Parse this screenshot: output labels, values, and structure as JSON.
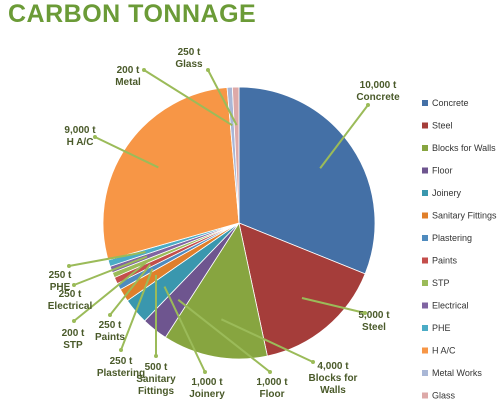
{
  "title": "CARBON TONNAGE",
  "colors": {
    "title": "#6B9B37",
    "label": "#4A5A2A",
    "leader": "#9BBB59"
  },
  "chart_data": {
    "type": "pie",
    "title": "CARBON TONNAGE",
    "slices": [
      {
        "name": "Concrete",
        "value": 10000,
        "label": "10,000 t\nConcrete",
        "color": "#4470A6"
      },
      {
        "name": "Steel",
        "value": 5000,
        "label": "5,000 t\nSteel",
        "color": "#A53D3A"
      },
      {
        "name": "Blocks for Walls",
        "value": 4000,
        "label": "4,000 t\nBlocks for\nWalls",
        "color": "#87A540"
      },
      {
        "name": "Floor",
        "value": 1000,
        "label": "1,000 t\nFloor",
        "color": "#6E558F"
      },
      {
        "name": "Joinery",
        "value": 1000,
        "label": "1,000 t\nJoinery",
        "color": "#3A97AE"
      },
      {
        "name": "Sanitary Fittings",
        "value": 500,
        "label": "500 t\nSanitary\nFittings",
        "color": "#E07F2B"
      },
      {
        "name": "Plastering",
        "value": 250,
        "label": "250 t\nPlastering",
        "color": "#4F8BBE"
      },
      {
        "name": "Paints",
        "value": 250,
        "label": "250 t\nPaints",
        "color": "#C44E4B"
      },
      {
        "name": "STP",
        "value": 200,
        "label": "200 t\nSTP",
        "color": "#9BBB59"
      },
      {
        "name": "Electrical",
        "value": 250,
        "label": "250 t\nElectrical",
        "color": "#8064A2"
      },
      {
        "name": "PHE",
        "value": 250,
        "label": "250 t\nPHE",
        "color": "#4BACC6"
      },
      {
        "name": "H A/C",
        "value": 9000,
        "label": "9,000 t\nH A/C",
        "color": "#F79646"
      },
      {
        "name": "Metal Works",
        "value": 200,
        "label": "200 t\nMetal",
        "color": "#A9B7D6"
      },
      {
        "name": "Glass",
        "value": 250,
        "label": "250 t\nGlass",
        "color": "#DDA9A8"
      }
    ],
    "legend_position": "right"
  }
}
